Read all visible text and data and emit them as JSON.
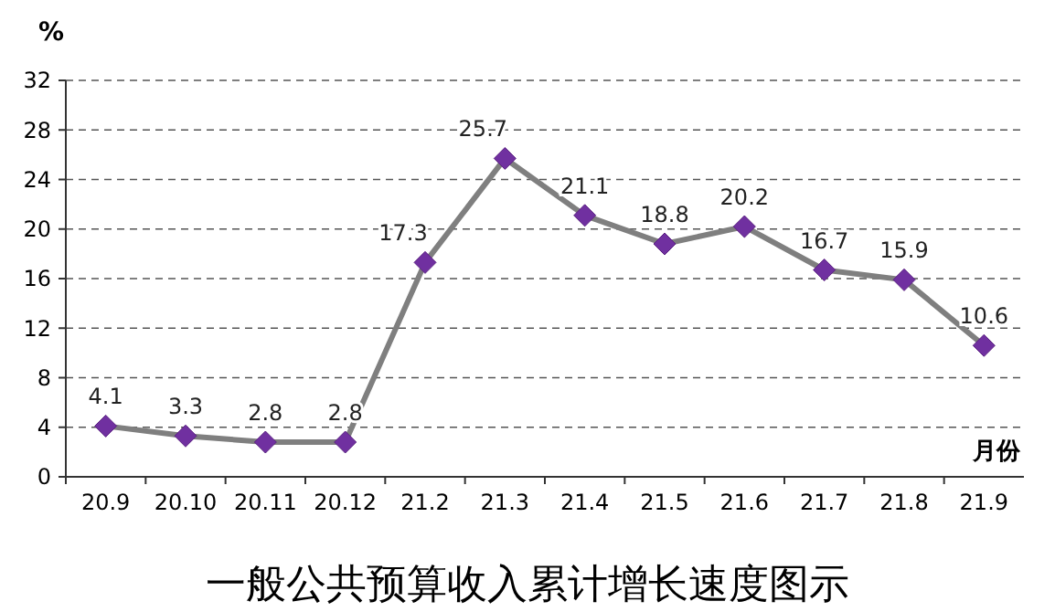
{
  "chart_data": {
    "type": "line",
    "title": "一般公共预算收入累计增长速度图示",
    "ylabel": "%",
    "xlabel": "月份",
    "categories": [
      "20.9",
      "20.10",
      "20.11",
      "20.12",
      "21.2",
      "21.3",
      "21.4",
      "21.5",
      "21.6",
      "21.7",
      "21.8",
      "21.9"
    ],
    "series": [
      {
        "color": "#7f7f7f",
        "values": [
          4.1,
          3.3,
          2.8,
          2.8,
          17.3,
          25.7,
          21.1,
          18.8,
          20.2,
          16.7,
          15.9,
          10.6
        ]
      }
    ],
    "ylim": [
      0,
      32
    ],
    "yticks": [
      0,
      4,
      8,
      12,
      16,
      20,
      24,
      28,
      32
    ],
    "grid": "y",
    "marker": "diamond",
    "line_style": "solid",
    "data_labels": true
  }
}
